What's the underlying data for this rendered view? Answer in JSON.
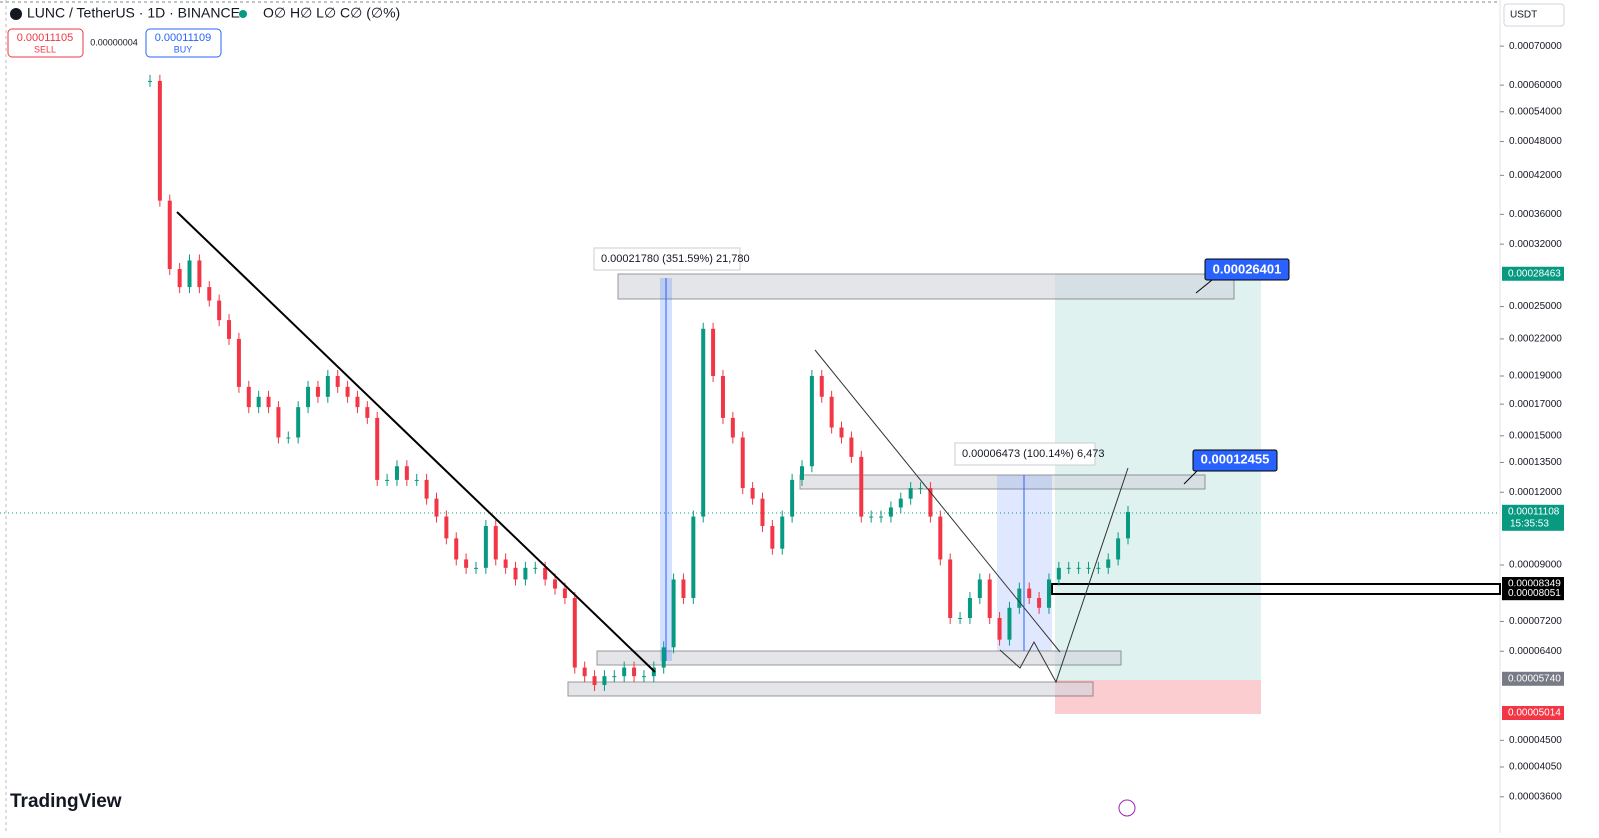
{
  "header": {
    "symbol": "LUNC / TetherUS · 1D · BINANCE",
    "ohlc": "O∅ H∅ L∅ C∅ (∅%)"
  },
  "order_panel": {
    "sell_price": "0.00011105",
    "sell_label": "SELL",
    "spread": "0.00000004",
    "buy_price": "0.00011109",
    "buy_label": "BUY"
  },
  "currency": "USDT",
  "brand": "TradingView",
  "price_axis": {
    "scale": "log",
    "ylim": [
      3.12e-05,
      0.00084
    ],
    "ticks": [
      {
        "value": 0.0007,
        "label": "0.00070000"
      },
      {
        "value": 0.0006,
        "label": "0.00060000"
      },
      {
        "value": 0.00054,
        "label": "0.00054000"
      },
      {
        "value": 0.00048,
        "label": "0.00048000"
      },
      {
        "value": 0.00042,
        "label": "0.00042000"
      },
      {
        "value": 0.00036,
        "label": "0.00036000"
      },
      {
        "value": 0.00032,
        "label": "0.00032000"
      },
      {
        "value": 0.00025,
        "label": "0.00025000"
      },
      {
        "value": 0.00022,
        "label": "0.00022000"
      },
      {
        "value": 0.00019,
        "label": "0.00019000"
      },
      {
        "value": 0.00017,
        "label": "0.00017000"
      },
      {
        "value": 0.00015,
        "label": "0.00015000"
      },
      {
        "value": 0.000135,
        "label": "0.00013500"
      },
      {
        "value": 0.00012,
        "label": "0.00012000"
      },
      {
        "value": 9e-05,
        "label": "0.00009000"
      },
      {
        "value": 7.2e-05,
        "label": "0.00007200"
      },
      {
        "value": 6.4e-05,
        "label": "0.00006400"
      },
      {
        "value": 4.5e-05,
        "label": "0.00004500"
      },
      {
        "value": 4.05e-05,
        "label": "0.00004050"
      },
      {
        "value": 3.6e-05,
        "label": "0.00003600"
      }
    ],
    "price_labels": [
      {
        "value": 0.00028463,
        "label": "0.00028463",
        "color": "#089981"
      },
      {
        "value": 0.00011108,
        "label": "0.00011108",
        "sub": "15:35:53",
        "color": "#089981"
      },
      {
        "value": 8.349e-05,
        "label": "0.00008349",
        "color": "#000000"
      },
      {
        "value": 8.051e-05,
        "label": "0.00008051",
        "color": "#000000"
      },
      {
        "value": 5.74e-05,
        "label": "0.00005740",
        "color": "#787b86"
      },
      {
        "value": 5.014e-05,
        "label": "0.00005014",
        "color": "#f23645"
      }
    ]
  },
  "annotations": {
    "measure_1": "0.00021780 (351.59%) 21,780",
    "measure_2": "0.00006473 (100.14%) 6,473",
    "callout_1": "0.00026401",
    "callout_2": "0.00012455"
  },
  "price_series": [
    0.00061,
    0.00038,
    0.00029,
    0.00027,
    0.0003,
    0.00027,
    0.000256,
    0.000237,
    0.00022,
    0.000182,
    0.000168,
    0.000175,
    0.000168,
    0.000149,
    0.000149,
    0.000168,
    0.000182,
    0.000175,
    0.00019,
    0.000182,
    0.000175,
    0.000168,
    0.000161,
    0.000126,
    0.000126,
    0.000133,
    0.000126,
    0.000126,
    0.000117,
    0.000109,
    0.0001,
    9.2e-05,
    8.9e-05,
    8.9e-05,
    0.000105,
    9.2e-05,
    8.9e-05,
    8.5e-05,
    8.9e-05,
    8.9e-05,
    8.5e-05,
    8.2e-05,
    7.9e-05,
    6e-05,
    5.8e-05,
    5.6e-05,
    5.8e-05,
    5.8e-05,
    6e-05,
    5.8e-05,
    5.8e-05,
    6e-05,
    6.5e-05,
    8.5e-05,
    7.9e-05,
    0.000109,
    0.000229,
    0.00019,
    0.000161,
    0.000149,
    0.000122,
    0.000117,
    0.000105,
    9.6e-05,
    0.000109,
    0.000126,
    0.000133,
    0.00019,
    0.000175,
    0.000155,
    0.000149,
    0.000138,
    0.000109,
    0.000109,
    0.000109,
    0.000113,
    0.000117,
    0.000122,
    0.000122,
    0.000109,
    9.2e-05,
    7.3e-05,
    7.3e-05,
    7.9e-05,
    8.5e-05,
    7.3e-05,
    6.7e-05,
    7.6e-05,
    8.2e-05,
    7.9e-05,
    7.6e-05,
    8.5e-05,
    8.9e-05,
    8.9e-05,
    8.9e-05,
    8.9e-05,
    8.9e-05,
    9.2e-05,
    0.0001,
    0.000111
  ]
}
